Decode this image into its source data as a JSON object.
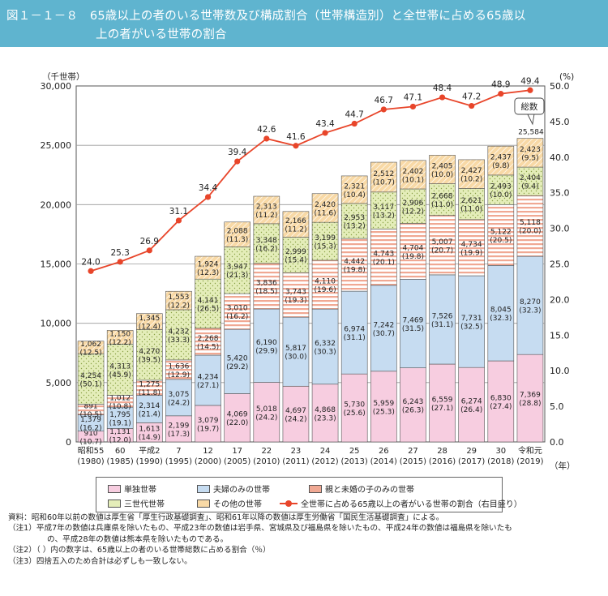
{
  "title": {
    "line1": "図１－１－８　65歳以上の者のいる世帯数及び構成割合（世帯構造別）と全世帯に占める65歳以",
    "line2": "上の者がいる世帯の割合"
  },
  "colors": {
    "single": "#f7cde0",
    "couple": "#c6dcf1",
    "parent_child": "#f0a893",
    "three_gen": "#e4edb9",
    "other": "#f8d9a6",
    "line": "#e8452a",
    "grid": "#9a9a9a"
  },
  "chart_data": {
    "type": "bar",
    "stacked": true,
    "y_left_unit": "（千世帯）",
    "y_right_unit": "(%)",
    "ylim_left": [
      0,
      30000
    ],
    "ylim_right": [
      0,
      50
    ],
    "y_left_ticks": [
      "0",
      "5,000",
      "10,000",
      "15,000",
      "20,000",
      "25,000",
      "30,000"
    ],
    "y_right_ticks": [
      "0.0",
      "5.0",
      "10.0",
      "15.0",
      "20.0",
      "25.0",
      "30.0",
      "35.0",
      "40.0",
      "45.0",
      "50.0"
    ],
    "x_unit": "（年）",
    "categories": [
      {
        "label": "昭和55",
        "year": "(1980)"
      },
      {
        "label": "60",
        "year": "(1985)"
      },
      {
        "label": "平成2",
        "year": "(1990)"
      },
      {
        "label": "7",
        "year": "(1995)"
      },
      {
        "label": "12",
        "year": "(2000)"
      },
      {
        "label": "17",
        "year": "(2005)"
      },
      {
        "label": "22",
        "year": "(2010)"
      },
      {
        "label": "23",
        "year": "(2011)"
      },
      {
        "label": "24",
        "year": "(2012)"
      },
      {
        "label": "25",
        "year": "(2013)"
      },
      {
        "label": "26",
        "year": "(2014)"
      },
      {
        "label": "27",
        "year": "(2015)"
      },
      {
        "label": "28",
        "year": "(2016)"
      },
      {
        "label": "29",
        "year": "(2017)"
      },
      {
        "label": "30",
        "year": "(2018)"
      },
      {
        "label": "令和元",
        "year": "(2019)"
      }
    ],
    "series": [
      {
        "key": "single",
        "name": "単独世帯",
        "values": [
          910,
          1131,
          1613,
          2199,
          3079,
          4069,
          5018,
          4697,
          4868,
          5730,
          5959,
          6243,
          6559,
          6274,
          6830,
          7369
        ],
        "value_labels": [
          "910",
          "1,131",
          "1,613",
          "2,199",
          "3,079",
          "4,069",
          "5,018",
          "4,697",
          "4,868",
          "5,730",
          "5,959",
          "6,243",
          "6,559",
          "6,274",
          "6,830",
          "7,369"
        ],
        "pct_labels": [
          "(10.7)",
          "(12.0)",
          "(14.9)",
          "(17.3)",
          "(19.7)",
          "(22.0)",
          "(24.2)",
          "(24.2)",
          "(23.3)",
          "(25.6)",
          "(25.3)",
          "(26.3)",
          "(27.1)",
          "(26.4)",
          "(27.4)",
          "(28.8)"
        ]
      },
      {
        "key": "couple",
        "name": "夫婦のみの世帯",
        "values": [
          1379,
          1795,
          2314,
          3075,
          4234,
          5420,
          6190,
          5817,
          6332,
          6974,
          7242,
          7469,
          7526,
          7731,
          8045,
          8270
        ],
        "value_labels": [
          "1,379",
          "1,795",
          "2,314",
          "3,075",
          "4,234",
          "5,420",
          "6,190",
          "5,817",
          "6,332",
          "6,974",
          "7,242",
          "7,469",
          "7,526",
          "7,731",
          "8,045",
          "8,270"
        ],
        "pct_labels": [
          "(16.2)",
          "(19.1)",
          "(21.4)",
          "(24.2)",
          "(27.1)",
          "(29.2)",
          "(29.9)",
          "(30.0)",
          "(30.3)",
          "(31.1)",
          "(30.7)",
          "(31.5)",
          "(31.1)",
          "(32.5)",
          "(32.3)",
          "(32.3)"
        ]
      },
      {
        "key": "parent_child",
        "name": "親と未婚の子のみの世帯",
        "values": [
          891,
          1012,
          1275,
          1636,
          2268,
          3010,
          3836,
          3743,
          4110,
          4442,
          4743,
          4704,
          5007,
          4734,
          5122,
          5118
        ],
        "value_labels": [
          "891",
          "1,012",
          "1,275",
          "1,636",
          "2,268",
          "3,010",
          "3,836",
          "3,743",
          "4,110",
          "4,442",
          "4,743",
          "4,704",
          "5,007",
          "4,734",
          "5,122",
          "5,118"
        ],
        "pct_labels": [
          "(10.5)",
          "(10.8)",
          "(11.8)",
          "(12.9)",
          "(14.5)",
          "(16.2)",
          "(18.5)",
          "(19.3)",
          "(19.6)",
          "(19.8)",
          "(20.1)",
          "(19.8)",
          "(20.7)",
          "(19.9)",
          "(20.5)",
          "(20.0)"
        ]
      },
      {
        "key": "three_gen",
        "name": "三世代世帯",
        "values": [
          4254,
          4313,
          4270,
          4232,
          4141,
          3947,
          3348,
          2999,
          3199,
          2953,
          3117,
          2906,
          2668,
          2621,
          2493,
          2404
        ],
        "value_labels": [
          "4,254",
          "4,313",
          "4,270",
          "4,232",
          "4,141",
          "3,947",
          "3,348",
          "2,999",
          "3,199",
          "2,953",
          "3,117",
          "2,906",
          "2,668",
          "2,621",
          "2,493",
          "2,404"
        ],
        "pct_labels": [
          "(50.1)",
          "(45.9)",
          "(39.5)",
          "(33.3)",
          "(26.5)",
          "(21.3)",
          "(16.2)",
          "(15.4)",
          "(15.3)",
          "(13.2)",
          "(13.2)",
          "(12.2)",
          "(11.0)",
          "(11.0)",
          "(10.0)",
          "(9.4)"
        ]
      },
      {
        "key": "other",
        "name": "その他の世帯",
        "values": [
          1062,
          1150,
          1345,
          1553,
          1924,
          2088,
          2313,
          2166,
          2420,
          2321,
          2512,
          2402,
          2405,
          2427,
          2437,
          2423
        ],
        "value_labels": [
          "1,062",
          "1,150",
          "1,345",
          "1,553",
          "1,924",
          "2,088",
          "2,313",
          "2,166",
          "2,420",
          "2,321",
          "2,512",
          "2,402",
          "2,405",
          "2,427",
          "2,437",
          "2,423"
        ],
        "pct_labels": [
          "(12.5)",
          "(12.2)",
          "(12.4)",
          "(12.2)",
          "(12.3)",
          "(11.3)",
          "(11.2)",
          "(11.2)",
          "(11.6)",
          "(10.4)",
          "(10.7)",
          "(10.1)",
          "(10.0)",
          "(10.2)",
          "(9.8)",
          "(9.5)"
        ]
      }
    ],
    "line_series": {
      "name": "全世帯に占める65歳以上の者がいる世帯の割合（右目盛り）",
      "values": [
        24.0,
        25.3,
        26.9,
        31.1,
        34.4,
        39.4,
        42.6,
        41.6,
        43.4,
        44.7,
        46.7,
        47.1,
        48.4,
        47.2,
        48.9,
        49.4
      ],
      "labels": [
        "24.0",
        "25.3",
        "26.9",
        "31.1",
        "34.4",
        "39.4",
        "42.6",
        "41.6",
        "43.4",
        "44.7",
        "46.7",
        "47.1",
        "48.4",
        "47.2",
        "48.9",
        "49.4"
      ]
    },
    "total_callout": {
      "label": "総数",
      "value": 25584,
      "value_label": "25,584"
    }
  },
  "legend": [
    {
      "key": "single",
      "label": "単独世帯"
    },
    {
      "key": "couple",
      "label": "夫婦のみの世帯"
    },
    {
      "key": "parent_child",
      "label": "親と未婚の子のみの世帯"
    },
    {
      "key": "three_gen",
      "label": "三世代世帯"
    },
    {
      "key": "other",
      "label": "その他の世帯"
    },
    {
      "key": "line",
      "label": "全世帯に占める65歳以上の者がいる世帯の割合（右目盛り）"
    }
  ],
  "notes": [
    "資料：昭和60年以前の数値は厚生省「厚生行政基礎調査」、昭和61年以降の数値は厚生労働省「国民生活基礎調査」による。",
    "（注1）平成7年の数値は兵庫県を除いたもの、平成23年の数値は岩手県、宮城県及び福島県を除いたもの、平成24年の数値は福島県を除いたも",
    "の、平成28年の数値は熊本県を除いたものである。",
    "（注2）（ ）内の数字は、65歳以上の者のいる世帯総数に占める割合（％）",
    "（注3）四捨五入のため合計は必ずしも一致しない。"
  ]
}
